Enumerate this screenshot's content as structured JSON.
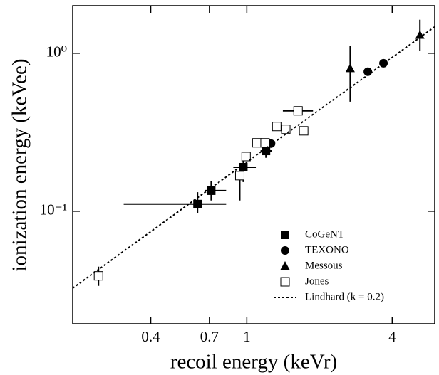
{
  "chart_data": {
    "type": "scatter",
    "xlabel": "recoil energy (keVr)",
    "ylabel": "ionization energy (keVee)",
    "xscale": "log",
    "yscale": "log",
    "xlim": [
      0.19,
      6
    ],
    "ylim": [
      0.0194,
      2.0
    ],
    "xticks": [
      0.4,
      0.7,
      1,
      4
    ],
    "yticks": [
      {
        "value": 0.1,
        "label": "10⁻¹"
      },
      {
        "value": 1,
        "label": "10⁰"
      }
    ],
    "legend": "lower right",
    "series": [
      {
        "name": "CoGeNT",
        "color": "#000000",
        "marker": "square",
        "x": [
          0.625,
          0.712,
          0.967,
          1.2
        ],
        "values": [
          0.111,
          0.135,
          0.19,
          0.241
        ],
        "x_err": [
          [
            0.309,
            0.821
          ],
          [
            0.668,
            0.821
          ],
          [
            0.879,
            1.09
          ],
          [
            1.14,
            1.27
          ]
        ],
        "y_err": [
          [
            0.097,
            0.132
          ],
          [
            0.117,
            0.156
          ],
          [
            0.153,
            0.227
          ],
          [
            0.218,
            0.26
          ]
        ]
      },
      {
        "name": "TEXONO",
        "color": "#000000",
        "marker": "circle",
        "x": [
          1.26,
          3.17,
          3.68
        ],
        "values": [
          0.268,
          0.764,
          0.865
        ]
      },
      {
        "name": "Messous",
        "color": "#000000",
        "marker": "triangle",
        "x": [
          2.68,
          5.21
        ],
        "values": [
          0.8,
          1.3
        ],
        "y_err": [
          [
            0.494,
            1.11
          ],
          [
            1.03,
            1.63
          ]
        ]
      },
      {
        "name": "Jones",
        "color": "#000000",
        "marker": "open-square",
        "x": [
          0.243,
          0.935,
          0.993,
          1.1,
          1.19,
          1.33,
          1.45,
          1.63,
          1.72
        ],
        "values": [
          0.039,
          0.168,
          0.222,
          0.271,
          0.271,
          0.344,
          0.33,
          0.432,
          0.323
        ],
        "x_err": [
          null,
          null,
          null,
          null,
          null,
          null,
          null,
          [
            1.41,
            1.88
          ],
          null
        ],
        "y_err": [
          [
            0.0337,
            0.0446
          ],
          [
            0.117,
            0.2
          ],
          null,
          null,
          null,
          null,
          null,
          null,
          null
        ]
      },
      {
        "name": "Lindhard (k = 0.2)",
        "color": "#000000",
        "marker": "dashed-line",
        "x": [
          0.19,
          1,
          6
        ],
        "values": [
          0.0326,
          0.205,
          1.47
        ]
      }
    ]
  }
}
